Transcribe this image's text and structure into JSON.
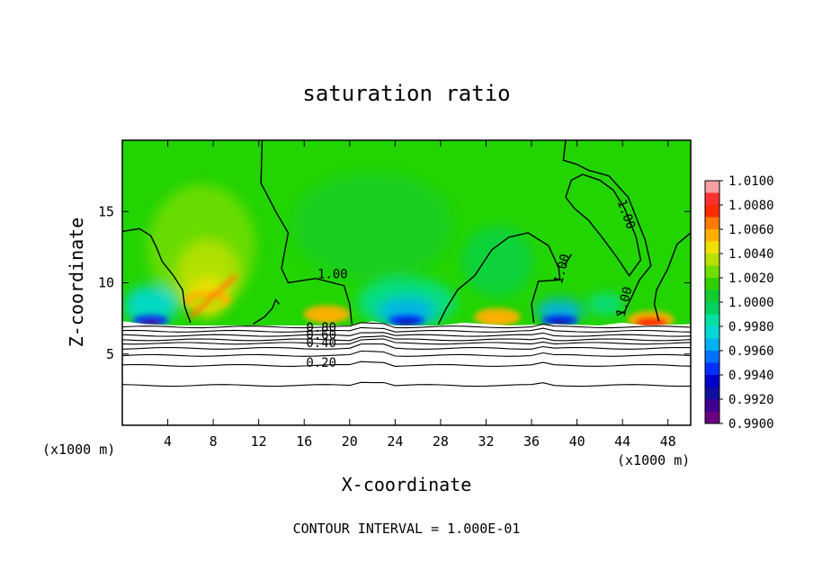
{
  "chart_data": {
    "type": "heatmap",
    "title": "saturation ratio",
    "xlabel": "X-coordinate",
    "ylabel": "Z-coordinate",
    "x_scale_note_left": "(x1000 m)",
    "x_scale_note_right": "(x1000 m)",
    "footer": "CONTOUR INTERVAL = 1.000E-01",
    "xlim": [
      0,
      50
    ],
    "ylim": [
      0,
      20
    ],
    "x_ticks": [
      4,
      8,
      12,
      16,
      20,
      24,
      28,
      32,
      36,
      40,
      44,
      48
    ],
    "y_ticks": [
      5,
      10,
      15
    ],
    "colorbar": {
      "ticks": [
        "1.0100",
        "1.0080",
        "1.0060",
        "1.0040",
        "1.0020",
        "1.0000",
        "0.9980",
        "0.9960",
        "0.9940",
        "0.9920",
        "0.9900"
      ],
      "colors": [
        "#f4a0a0",
        "#ff3030",
        "#ff2a00",
        "#ff7a00",
        "#ffb000",
        "#f0e000",
        "#b8e000",
        "#70dd00",
        "#30d000",
        "#10cc30",
        "#00d060",
        "#00e0a0",
        "#00d8d8",
        "#00b0f0",
        "#0070ff",
        "#0030ff",
        "#0000cc",
        "#1010a0",
        "#400090",
        "#6a0080"
      ]
    },
    "contour_labels": [
      {
        "text": "1.00",
        "x": 18.5,
        "z": 10.3,
        "rotate": 0
      },
      {
        "text": "1.00",
        "x": 39.0,
        "z": 10.9,
        "rotate": -75
      },
      {
        "text": "1.00",
        "x": 44.0,
        "z": 14.7,
        "rotate": 70
      },
      {
        "text": "1.00",
        "x": 44.5,
        "z": 8.6,
        "rotate": -75
      },
      {
        "text": "0.80",
        "x": 17.5,
        "z": 6.55,
        "rotate": 0
      },
      {
        "text": "0.60",
        "x": 17.5,
        "z": 6.05,
        "rotate": 0
      },
      {
        "text": "0.40",
        "x": 17.5,
        "z": 5.5,
        "rotate": 0
      },
      {
        "text": "0.20",
        "x": 17.5,
        "z": 4.1,
        "rotate": 0
      }
    ],
    "flat_contours": [
      {
        "level": 0.9,
        "z": 6.9
      },
      {
        "level": 0.8,
        "z": 6.6
      },
      {
        "level": 0.7,
        "z": 6.3
      },
      {
        "level": 0.6,
        "z": 6.0
      },
      {
        "level": 0.5,
        "z": 5.75
      },
      {
        "level": 0.4,
        "z": 5.4
      },
      {
        "level": 0.3,
        "z": 4.9
      },
      {
        "level": 0.2,
        "z": 4.2
      },
      {
        "level": 0.1,
        "z": 2.8
      }
    ],
    "hotspots": [
      {
        "x": 7.5,
        "z": 8.8,
        "value": 1.004
      },
      {
        "x": 18,
        "z": 7.8,
        "value": 1.006
      },
      {
        "x": 33,
        "z": 7.6,
        "value": 1.006
      },
      {
        "x": 46.5,
        "z": 7.4,
        "value": 1.008
      }
    ],
    "coldspots": [
      {
        "x": 2.5,
        "z": 7.5,
        "value": 0.991
      },
      {
        "x": 25,
        "z": 7.5,
        "value": 0.992
      },
      {
        "x": 38.5,
        "z": 7.5,
        "value": 0.992
      }
    ]
  }
}
